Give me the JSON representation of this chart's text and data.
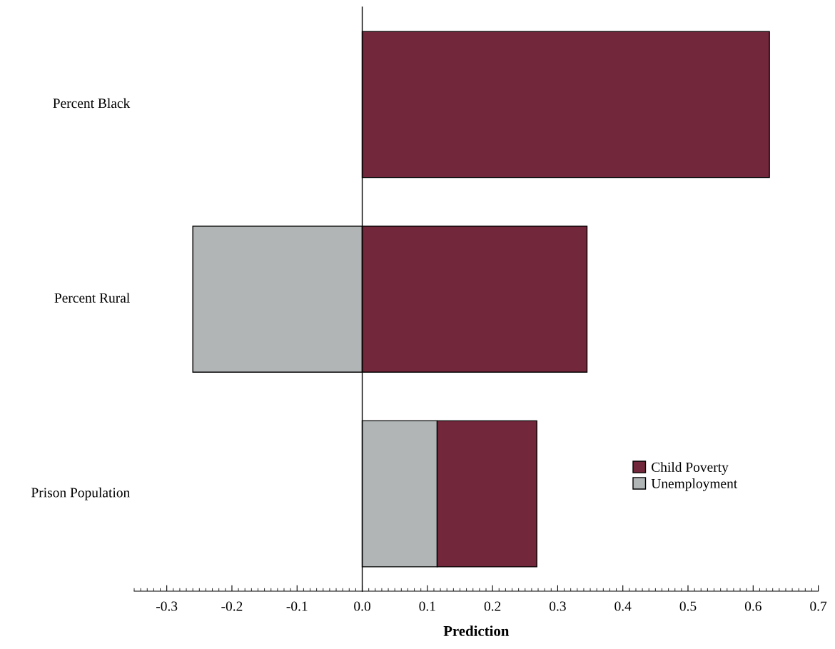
{
  "chart_data": {
    "type": "bar",
    "orientation": "horizontal",
    "stacked": true,
    "xlabel": "Prediction",
    "categories": [
      "Percent Black",
      "Percent Rural",
      "Prison Population"
    ],
    "series": [
      {
        "name": "Unemployment",
        "color": "#b2b5b6",
        "values": [
          null,
          -0.26,
          0.115
        ]
      },
      {
        "name": "Child Poverty",
        "color": "#73273b",
        "values": [
          0.625,
          0.345,
          0.153
        ]
      }
    ],
    "xlim": [
      -0.35,
      0.7
    ],
    "xticks": [
      {
        "value": -0.3,
        "label": "-0.3"
      },
      {
        "value": -0.2,
        "label": "-0.2"
      },
      {
        "value": -0.1,
        "label": "-0.1"
      },
      {
        "value": 0,
        "label": "0.0"
      },
      0.1,
      0.2,
      0.3,
      0.4,
      0.5,
      0.6,
      0.7
    ],
    "legend": "bottom right"
  }
}
